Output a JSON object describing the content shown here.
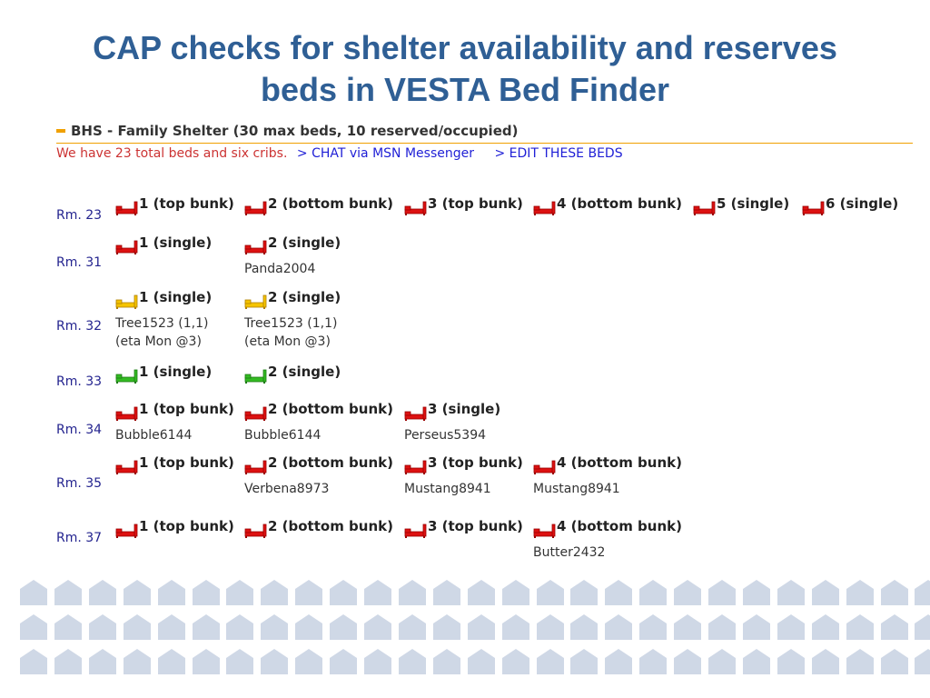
{
  "slide": {
    "title_line1": "CAP checks for shelter availability and reserves",
    "title_line2": "beds in VESTA Bed Finder"
  },
  "shelter": {
    "name": "BHS - Family Shelter (30 max beds, 10 reserved/occupied)",
    "info_text": "We have 23 total beds and six cribs.",
    "chat_link": "> CHAT via MSN Messenger",
    "edit_link": "> EDIT THESE BEDS"
  },
  "colors": {
    "title": "#2f5f95",
    "available": "#dd1111",
    "reserved": "#f5c400",
    "open": "#33bb22",
    "pattern": "#cfd8e6"
  },
  "rooms": [
    {
      "label": "Rm. 23",
      "beds": [
        {
          "label": "1 (top bunk)",
          "status": "red",
          "notes": []
        },
        {
          "label": "2 (bottom bunk)",
          "status": "red",
          "notes": []
        },
        {
          "label": "3 (top bunk)",
          "status": "red",
          "notes": []
        },
        {
          "label": "4 (bottom bunk)",
          "status": "red",
          "notes": []
        },
        {
          "label": "5 (single)",
          "status": "red",
          "notes": []
        },
        {
          "label": "6 (single)",
          "status": "red",
          "notes": []
        }
      ]
    },
    {
      "label": "Rm. 31",
      "beds": [
        {
          "label": "1 (single)",
          "status": "red",
          "notes": []
        },
        {
          "label": "2 (single)",
          "status": "red",
          "notes": [
            "Panda2004"
          ]
        }
      ]
    },
    {
      "label": "Rm. 32",
      "beds": [
        {
          "label": "1 (single)",
          "status": "yellow",
          "notes": [
            "Tree1523 (1,1)",
            "(eta Mon @3)"
          ]
        },
        {
          "label": "2 (single)",
          "status": "yellow",
          "notes": [
            "Tree1523 (1,1)",
            "(eta Mon @3)"
          ]
        }
      ]
    },
    {
      "label": "Rm. 33",
      "beds": [
        {
          "label": "1 (single)",
          "status": "green",
          "notes": []
        },
        {
          "label": "2 (single)",
          "status": "green",
          "notes": []
        }
      ]
    },
    {
      "label": "Rm. 34",
      "beds": [
        {
          "label": "1 (top bunk)",
          "status": "red",
          "notes": [
            "Bubble6144"
          ]
        },
        {
          "label": "2 (bottom bunk)",
          "status": "red",
          "notes": [
            "Bubble6144"
          ]
        },
        {
          "label": "3 (single)",
          "status": "red",
          "notes": [
            "Perseus5394"
          ]
        }
      ]
    },
    {
      "label": "Rm. 35",
      "beds": [
        {
          "label": "1 (top bunk)",
          "status": "red",
          "notes": []
        },
        {
          "label": "2 (bottom bunk)",
          "status": "red",
          "notes": [
            "Verbena8973"
          ]
        },
        {
          "label": "3 (top bunk)",
          "status": "red",
          "notes": [
            "Mustang8941"
          ]
        },
        {
          "label": "4 (bottom bunk)",
          "status": "red",
          "notes": [
            "Mustang8941"
          ]
        }
      ]
    },
    {
      "label": "Rm. 37",
      "beds": [
        {
          "label": "1 (top bunk)",
          "status": "red",
          "notes": []
        },
        {
          "label": "2 (bottom bunk)",
          "status": "red",
          "notes": []
        },
        {
          "label": "3 (top bunk)",
          "status": "red",
          "notes": []
        },
        {
          "label": "4 (bottom bunk)",
          "status": "red",
          "notes": [
            "Butter2432"
          ]
        }
      ]
    }
  ]
}
